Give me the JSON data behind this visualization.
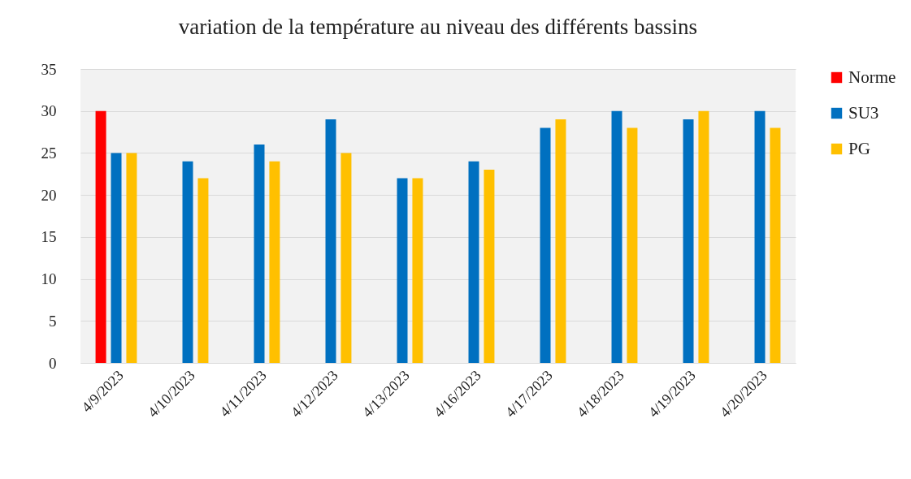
{
  "chart_data": {
    "type": "bar",
    "title": "variation de la  température au niveau des différents bassins",
    "categories": [
      "4/9/2023",
      "4/10/2023",
      "4/11/2023",
      "4/12/2023",
      "4/13/2023",
      "4/16/2023",
      "4/17/2023",
      "4/18/2023",
      "4/19/2023",
      "4/20/2023"
    ],
    "series": [
      {
        "name": "Norme",
        "color": "#ff0000",
        "values": [
          30,
          null,
          null,
          null,
          null,
          null,
          null,
          null,
          null,
          null
        ]
      },
      {
        "name": "SU3",
        "color": "#0070c0",
        "values": [
          25,
          24,
          26,
          29,
          22,
          24,
          28,
          30,
          29,
          30
        ]
      },
      {
        "name": "PG",
        "color": "#ffc000",
        "values": [
          25,
          22,
          24,
          25,
          22,
          23,
          29,
          28,
          30,
          28
        ]
      }
    ],
    "ylim": [
      0,
      35
    ],
    "yticks": [
      0,
      5,
      10,
      15,
      20,
      25,
      30,
      35
    ],
    "grid": "y",
    "legend": "right"
  }
}
